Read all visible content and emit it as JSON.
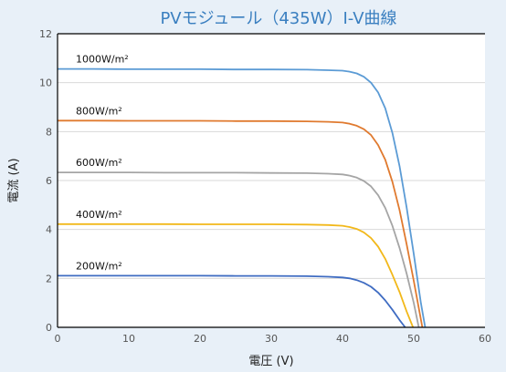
{
  "colors": {
    "background": "#e8f0f8",
    "plot_background": "#ffffff",
    "title": "#3a7fc0",
    "grid": "#d9d9d9",
    "axis": "#000000"
  },
  "chart_data": {
    "type": "line",
    "title": "PVモジュール（435W）I-V曲線",
    "xlabel": "電圧 (V)",
    "ylabel": "電流 (A)",
    "xlim": [
      0,
      60
    ],
    "ylim": [
      0,
      12
    ],
    "xticks": [
      0,
      10,
      20,
      30,
      40,
      50,
      60
    ],
    "yticks": [
      0,
      2,
      4,
      6,
      8,
      10,
      12
    ],
    "grid": "horizontal",
    "series": [
      {
        "name": "1000W/m²",
        "color": "#5b9bd5",
        "x": [
          0,
          5,
          10,
          15,
          20,
          25,
          30,
          35,
          38,
          40,
          41,
          42,
          43,
          44,
          45,
          46,
          47,
          48,
          49,
          50,
          51,
          51.6
        ],
        "y": [
          10.56,
          10.56,
          10.55,
          10.55,
          10.55,
          10.54,
          10.54,
          10.53,
          10.51,
          10.49,
          10.45,
          10.38,
          10.24,
          10.0,
          9.6,
          8.95,
          7.95,
          6.6,
          4.9,
          3.0,
          1.0,
          0
        ]
      },
      {
        "name": "800W/m²",
        "color": "#e07a2f",
        "x": [
          0,
          5,
          10,
          15,
          20,
          25,
          30,
          35,
          38,
          40,
          41,
          42,
          43,
          44,
          45,
          46,
          47,
          48,
          49,
          50,
          51.2
        ],
        "y": [
          8.45,
          8.45,
          8.44,
          8.44,
          8.44,
          8.43,
          8.43,
          8.42,
          8.4,
          8.37,
          8.32,
          8.24,
          8.1,
          7.86,
          7.45,
          6.85,
          5.95,
          4.8,
          3.4,
          1.9,
          0
        ]
      },
      {
        "name": "600W/m²",
        "color": "#a5a5a5",
        "x": [
          0,
          5,
          10,
          15,
          20,
          25,
          30,
          35,
          38,
          40,
          41,
          42,
          43,
          44,
          45,
          46,
          47,
          48,
          49,
          50,
          50.7
        ],
        "y": [
          6.33,
          6.33,
          6.33,
          6.32,
          6.32,
          6.32,
          6.31,
          6.3,
          6.28,
          6.25,
          6.2,
          6.12,
          5.98,
          5.76,
          5.4,
          4.88,
          4.15,
          3.25,
          2.2,
          1.0,
          0
        ]
      },
      {
        "name": "400W/m²",
        "color": "#f2b81a",
        "x": [
          0,
          5,
          10,
          15,
          20,
          25,
          30,
          35,
          38,
          40,
          41,
          42,
          43,
          44,
          45,
          46,
          47,
          48,
          49,
          49.9
        ],
        "y": [
          4.22,
          4.22,
          4.22,
          4.22,
          4.21,
          4.21,
          4.21,
          4.2,
          4.18,
          4.15,
          4.1,
          4.02,
          3.88,
          3.65,
          3.3,
          2.8,
          2.15,
          1.45,
          0.65,
          0
        ]
      },
      {
        "name": "200W/m²",
        "color": "#3f6cc2",
        "x": [
          0,
          5,
          10,
          15,
          20,
          25,
          30,
          35,
          38,
          40,
          41,
          42,
          43,
          44,
          45,
          46,
          47,
          48,
          48.8
        ],
        "y": [
          2.11,
          2.11,
          2.11,
          2.11,
          2.11,
          2.1,
          2.1,
          2.09,
          2.07,
          2.04,
          2.0,
          1.93,
          1.82,
          1.66,
          1.42,
          1.1,
          0.72,
          0.3,
          0
        ]
      }
    ]
  }
}
